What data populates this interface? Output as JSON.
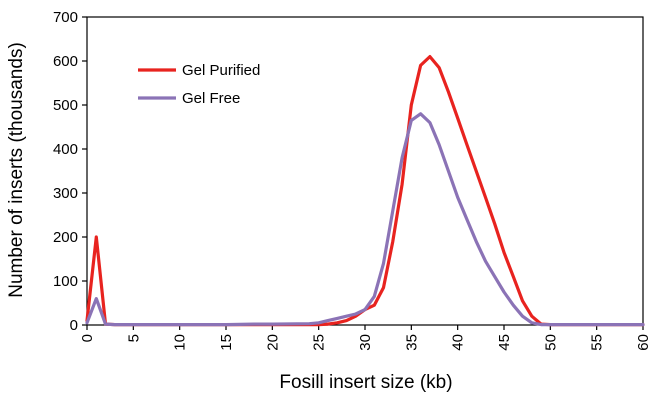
{
  "chart_data": {
    "type": "line",
    "xlabel": "Fosill insert size (kb)",
    "ylabel": "Number of inserts (thousands)",
    "xlim": [
      0,
      60
    ],
    "ylim": [
      0,
      700
    ],
    "xticks": [
      0,
      5,
      10,
      15,
      20,
      25,
      30,
      35,
      40,
      45,
      50,
      55,
      60
    ],
    "yticks": [
      0,
      100,
      200,
      300,
      400,
      500,
      600,
      700
    ],
    "grid": false,
    "legend_placement": "top-left",
    "series": [
      {
        "name": "Gel Purified",
        "color": "#e8231f",
        "points": [
          [
            0,
            10
          ],
          [
            1,
            200
          ],
          [
            2,
            2
          ],
          [
            3,
            1
          ],
          [
            5,
            1
          ],
          [
            10,
            1
          ],
          [
            15,
            1
          ],
          [
            20,
            1
          ],
          [
            25,
            1
          ],
          [
            26,
            2
          ],
          [
            27,
            5
          ],
          [
            28,
            10
          ],
          [
            29,
            20
          ],
          [
            30,
            35
          ],
          [
            31,
            45
          ],
          [
            32,
            85
          ],
          [
            33,
            190
          ],
          [
            34,
            320
          ],
          [
            35,
            500
          ],
          [
            36,
            590
          ],
          [
            37,
            610
          ],
          [
            38,
            585
          ],
          [
            39,
            530
          ],
          [
            40,
            470
          ],
          [
            41,
            410
          ],
          [
            42,
            350
          ],
          [
            43,
            290
          ],
          [
            44,
            230
          ],
          [
            45,
            165
          ],
          [
            46,
            110
          ],
          [
            47,
            55
          ],
          [
            48,
            20
          ],
          [
            49,
            2
          ],
          [
            50,
            1
          ],
          [
            55,
            1
          ],
          [
            60,
            1
          ]
        ]
      },
      {
        "name": "Gel Free",
        "color": "#8b73b6",
        "points": [
          [
            0,
            5
          ],
          [
            1,
            60
          ],
          [
            2,
            2
          ],
          [
            3,
            1
          ],
          [
            5,
            1
          ],
          [
            10,
            1
          ],
          [
            15,
            1
          ],
          [
            18,
            2
          ],
          [
            20,
            2
          ],
          [
            24,
            3
          ],
          [
            25,
            5
          ],
          [
            26,
            10
          ],
          [
            27,
            15
          ],
          [
            28,
            20
          ],
          [
            29,
            25
          ],
          [
            30,
            35
          ],
          [
            31,
            65
          ],
          [
            32,
            140
          ],
          [
            33,
            260
          ],
          [
            34,
            380
          ],
          [
            35,
            465
          ],
          [
            36,
            480
          ],
          [
            37,
            460
          ],
          [
            38,
            410
          ],
          [
            39,
            350
          ],
          [
            40,
            290
          ],
          [
            41,
            240
          ],
          [
            42,
            190
          ],
          [
            43,
            145
          ],
          [
            44,
            110
          ],
          [
            45,
            75
          ],
          [
            46,
            45
          ],
          [
            47,
            20
          ],
          [
            48,
            5
          ],
          [
            49,
            1
          ],
          [
            50,
            1
          ],
          [
            55,
            1
          ],
          [
            60,
            1
          ]
        ]
      }
    ]
  }
}
